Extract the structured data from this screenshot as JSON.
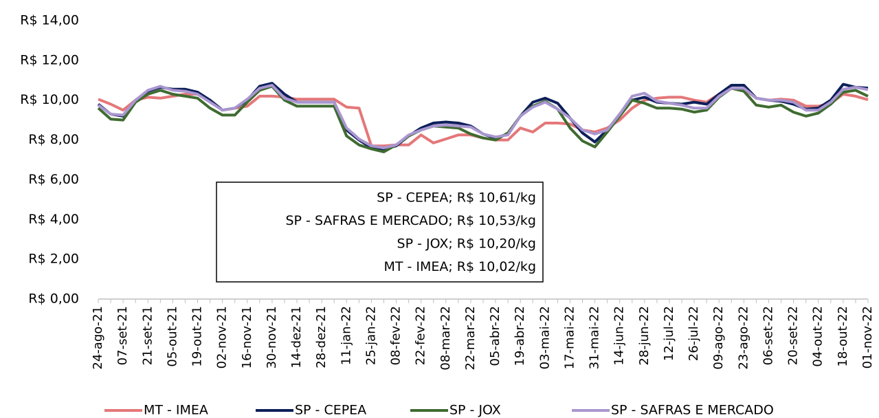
{
  "chart_data": {
    "type": "line",
    "categories": [
      "24-ago-21",
      null,
      "07-set-21",
      null,
      "21-set-21",
      null,
      "05-out-21",
      null,
      "19-out-21",
      null,
      "02-nov-21",
      null,
      "16-nov-21",
      null,
      "30-nov-21",
      null,
      "14-dez-21",
      null,
      "28-dez-21",
      null,
      "11-jan-22",
      null,
      "25-jan-22",
      null,
      "08-fev-22",
      null,
      "22-fev-22",
      null,
      "08-mar-22",
      null,
      "22-mar-22",
      null,
      "05-abr-22",
      null,
      "19-abr-22",
      null,
      "03-mai-22",
      null,
      "17-mai-22",
      null,
      "31-mai-22",
      null,
      "14-jun-22",
      null,
      "28-jun-22",
      null,
      "12-jul-22",
      null,
      "26-jul-22",
      null,
      "09-ago-22",
      null,
      "23-ago-22",
      null,
      "06-set-22",
      null,
      "20-set-22",
      null,
      "04-out-22",
      null,
      "18-out-22",
      null,
      "01-nov-22"
    ],
    "series": [
      {
        "name": "MT - IMEA",
        "color": "#e47779",
        "values": [
          10.05,
          9.8,
          9.5,
          10.0,
          10.15,
          10.1,
          10.2,
          10.3,
          10.3,
          10.0,
          9.5,
          9.6,
          9.7,
          10.2,
          10.2,
          10.15,
          10.05,
          10.05,
          10.05,
          10.05,
          9.65,
          9.6,
          7.7,
          7.7,
          7.75,
          7.75,
          8.25,
          7.85,
          8.05,
          8.25,
          8.25,
          8.1,
          8.0,
          8.0,
          8.6,
          8.4,
          8.85,
          8.85,
          8.8,
          8.5,
          8.4,
          8.6,
          9.0,
          9.6,
          10.0,
          10.1,
          10.15,
          10.15,
          10.0,
          9.9,
          10.3,
          10.6,
          10.55,
          10.1,
          10.0,
          10.05,
          10.0,
          9.7,
          9.7,
          9.85,
          10.3,
          10.2,
          10.02
        ]
      },
      {
        "name": "SP - CEPEA",
        "color": "#0d1f5a",
        "values": [
          9.8,
          9.3,
          9.2,
          10.0,
          10.45,
          10.65,
          10.55,
          10.55,
          10.4,
          10.0,
          9.5,
          9.6,
          10.0,
          10.7,
          10.85,
          10.3,
          9.9,
          9.9,
          9.9,
          9.9,
          8.5,
          8.0,
          7.6,
          7.55,
          7.7,
          8.2,
          8.6,
          8.85,
          8.9,
          8.85,
          8.7,
          8.3,
          8.1,
          8.3,
          9.2,
          9.9,
          10.1,
          9.85,
          9.1,
          8.35,
          7.9,
          8.5,
          9.3,
          10.0,
          10.15,
          9.9,
          9.85,
          9.8,
          9.9,
          9.8,
          10.3,
          10.75,
          10.75,
          10.1,
          10.0,
          9.95,
          9.8,
          9.55,
          9.6,
          10.0,
          10.8,
          10.65,
          10.61
        ]
      },
      {
        "name": "SP - JOX",
        "color": "#3f6b30",
        "values": [
          9.6,
          9.05,
          9.0,
          9.9,
          10.3,
          10.5,
          10.3,
          10.2,
          10.1,
          9.6,
          9.25,
          9.25,
          9.9,
          10.5,
          10.7,
          10.0,
          9.7,
          9.7,
          9.7,
          9.7,
          8.2,
          7.75,
          7.55,
          7.4,
          7.75,
          8.2,
          8.5,
          8.7,
          8.65,
          8.6,
          8.3,
          8.1,
          8.0,
          8.35,
          9.2,
          9.7,
          9.95,
          9.55,
          8.6,
          7.95,
          7.65,
          8.4,
          9.2,
          10.0,
          9.85,
          9.6,
          9.6,
          9.55,
          9.4,
          9.5,
          10.15,
          10.6,
          10.45,
          9.75,
          9.65,
          9.75,
          9.4,
          9.2,
          9.35,
          9.8,
          10.4,
          10.5,
          10.2
        ]
      },
      {
        "name": "SP - SAFRAS E MERCADO",
        "color": "#a996d0",
        "values": [
          9.75,
          9.3,
          9.25,
          10.0,
          10.5,
          10.7,
          10.5,
          10.45,
          10.3,
          9.9,
          9.5,
          9.6,
          10.05,
          10.6,
          10.75,
          10.1,
          9.9,
          9.9,
          9.9,
          9.9,
          8.6,
          8.05,
          7.7,
          7.6,
          7.75,
          8.25,
          8.5,
          8.7,
          8.75,
          8.7,
          8.65,
          8.3,
          8.15,
          8.25,
          9.2,
          9.65,
          9.9,
          9.55,
          9.1,
          8.5,
          8.3,
          8.5,
          9.3,
          10.2,
          10.35,
          9.95,
          9.85,
          9.75,
          9.6,
          9.6,
          10.2,
          10.6,
          10.6,
          10.1,
          10.0,
          10.0,
          9.9,
          9.5,
          9.5,
          9.9,
          10.55,
          10.65,
          10.53
        ]
      }
    ],
    "ylim": [
      0,
      14
    ],
    "yticks": [
      {
        "value": 0,
        "label": "R$ 0,00"
      },
      {
        "value": 2,
        "label": "R$ 2,00"
      },
      {
        "value": 4,
        "label": "R$ 4,00"
      },
      {
        "value": 6,
        "label": "R$ 6,00"
      },
      {
        "value": 8,
        "label": "R$ 8,00"
      },
      {
        "value": 10,
        "label": "R$ 10,00"
      },
      {
        "value": 12,
        "label": "R$ 12,00"
      },
      {
        "value": 14,
        "label": "R$ 14,00"
      }
    ],
    "grid": false,
    "legend": "bottom",
    "annotations": [
      "SP - CEPEA; R$ 10,61/kg",
      "SP - SAFRAS E MERCADO; R$ 10,53/kg",
      "SP - JOX; R$ 10,20/kg",
      "MT - IMEA; R$ 10,02/kg"
    ]
  }
}
